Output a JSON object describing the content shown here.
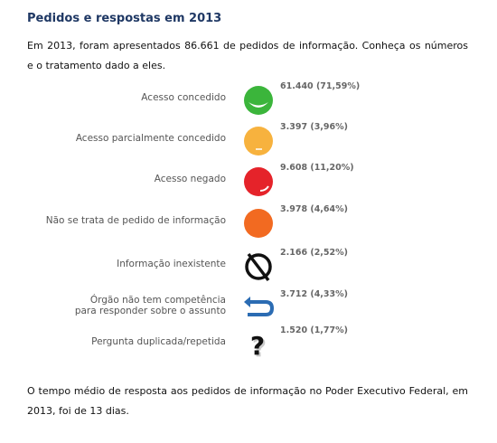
{
  "header": {
    "title": "Pedidos e respostas em 2013"
  },
  "intro": "Em 2013, foram apresentados 86.661 de pedidos de informação. Conheça os números e o tratamento dado a eles.",
  "items": [
    {
      "label": [
        "Acesso concedido"
      ],
      "value": "61.440 (71,59%)"
    },
    {
      "label": [
        "Acesso parcialmente concedido"
      ],
      "value": "3.397 (3,96%)"
    },
    {
      "label": [
        "Acesso negado"
      ],
      "value": "9.608 (11,20%)"
    },
    {
      "label": [
        "Não se trata de pedido de informação"
      ],
      "value": "3.978 (4,64%)"
    },
    {
      "label": [
        "Informação inexistente"
      ],
      "value": "2.166 (2,52%)"
    },
    {
      "label": [
        "Órgão não tem competência",
        "para responder sobre o assunto"
      ],
      "value": "3.712 (4,33%)"
    },
    {
      "label": [
        "Pergunta duplicada/repetida"
      ],
      "value": "1.520 (1,77%)"
    }
  ],
  "footer": "O tempo médio de resposta aos pedidos de informação no Poder Executivo Federal, em 2013, foi de 13 dias."
}
